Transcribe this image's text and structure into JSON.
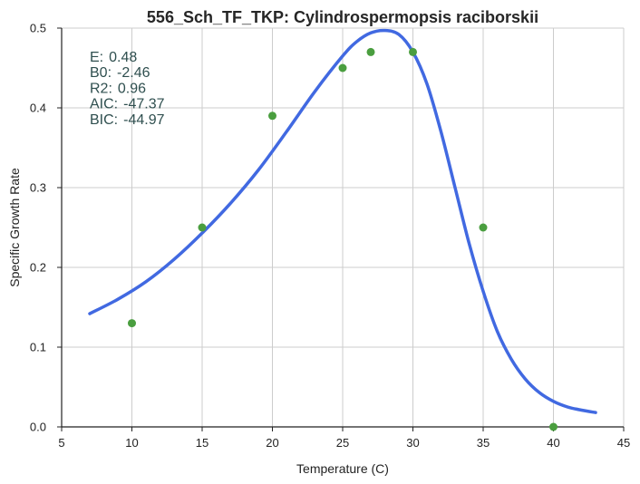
{
  "chart_data": {
    "type": "scatter",
    "title": "556_Sch_TF_TKP: Cylindrospermopsis raciborskii",
    "xlabel": "Temperature (C)",
    "ylabel": "Specific Growth Rate",
    "xlim": [
      5,
      45
    ],
    "ylim": [
      0.0,
      0.5
    ],
    "x_ticks": [
      "5",
      "10",
      "15",
      "20",
      "25",
      "30",
      "35",
      "40",
      "45"
    ],
    "y_ticks": [
      "0.0",
      "0.1",
      "0.2",
      "0.3",
      "0.4",
      "0.5"
    ],
    "grid": true,
    "series": [
      {
        "kind": "scatter",
        "color": "#4a9e3f",
        "x": [
          10,
          15,
          20,
          25,
          27,
          30,
          35,
          40
        ],
        "y": [
          0.13,
          0.25,
          0.39,
          0.45,
          0.47,
          0.47,
          0.25,
          0.0
        ]
      },
      {
        "kind": "line",
        "color": "#4169e1",
        "x": [
          7,
          9,
          11,
          13,
          15,
          17,
          19,
          21,
          23,
          25,
          26,
          27,
          28,
          29,
          30,
          31,
          32,
          33,
          34,
          35,
          36,
          37,
          38,
          39,
          40,
          41,
          42,
          43
        ],
        "y": [
          0.142,
          0.16,
          0.182,
          0.21,
          0.243,
          0.28,
          0.322,
          0.37,
          0.42,
          0.465,
          0.483,
          0.494,
          0.497,
          0.492,
          0.47,
          0.43,
          0.37,
          0.3,
          0.23,
          0.17,
          0.12,
          0.085,
          0.06,
          0.043,
          0.032,
          0.025,
          0.021,
          0.018
        ]
      }
    ],
    "annotations": [
      {
        "label": "E:",
        "value": "0.48"
      },
      {
        "label": "B0:",
        "value": "-2.46"
      },
      {
        "label": "R2:",
        "value": "0.96"
      },
      {
        "label": "AIC:",
        "value": "-47.37"
      },
      {
        "label": "BIC:",
        "value": "-44.97"
      }
    ],
    "annotation_color": "#2f4f4f"
  }
}
